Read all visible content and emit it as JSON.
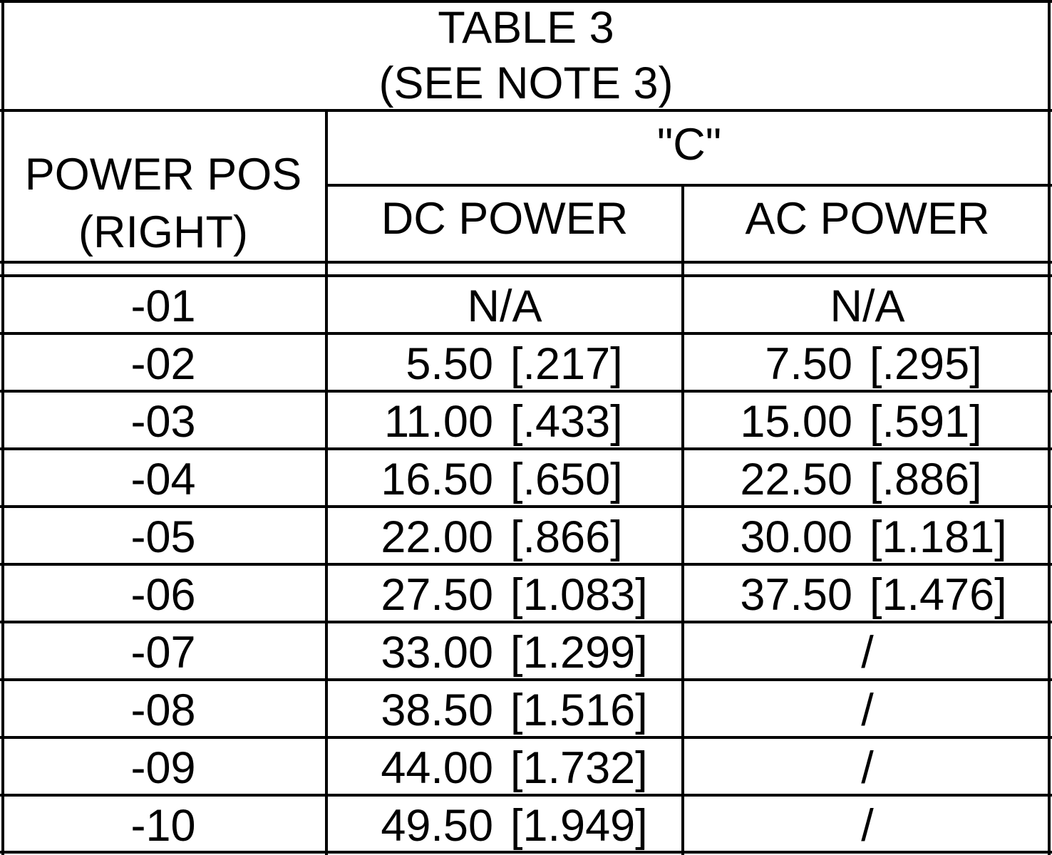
{
  "title": {
    "line1": "TABLE 3",
    "line2": "(SEE NOTE 3)"
  },
  "headers": {
    "col1_line1": "POWER POS",
    "col1_line2": "(RIGHT)",
    "group": "\"C\"",
    "col2": "DC POWER",
    "col3": "AC POWER"
  },
  "rows": [
    {
      "pos": "-01",
      "dc": "N/A",
      "dc_in": "",
      "ac": "N/A",
      "ac_in": ""
    },
    {
      "pos": "-02",
      "dc": "5.50",
      "dc_in": "[.217]",
      "ac": "7.50",
      "ac_in": "[.295]"
    },
    {
      "pos": "-03",
      "dc": "11.00",
      "dc_in": "[.433]",
      "ac": "15.00",
      "ac_in": "[.591]"
    },
    {
      "pos": "-04",
      "dc": "16.50",
      "dc_in": "[.650]",
      "ac": "22.50",
      "ac_in": "[.886]"
    },
    {
      "pos": "-05",
      "dc": "22.00",
      "dc_in": "[.866]",
      "ac": "30.00",
      "ac_in": "[1.181]"
    },
    {
      "pos": "-06",
      "dc": "27.50",
      "dc_in": "[1.083]",
      "ac": "37.50",
      "ac_in": "[1.476]"
    },
    {
      "pos": "-07",
      "dc": "33.00",
      "dc_in": "[1.299]",
      "ac": "/",
      "ac_in": ""
    },
    {
      "pos": "-08",
      "dc": "38.50",
      "dc_in": "[1.516]",
      "ac": "/",
      "ac_in": ""
    },
    {
      "pos": "-09",
      "dc": "44.00",
      "dc_in": "[1.732]",
      "ac": "/",
      "ac_in": ""
    },
    {
      "pos": "-10",
      "dc": "49.50",
      "dc_in": "[1.949]",
      "ac": "/",
      "ac_in": ""
    }
  ]
}
